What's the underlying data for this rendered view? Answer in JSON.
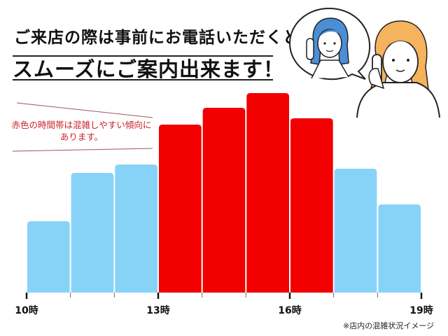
{
  "heading": {
    "line1": "ご来店の際は事前にお電話いただくと",
    "line2": "スムーズにご案内出来ます！"
  },
  "annotation": "赤色の時間帯は混雑しやすい傾向にあります。",
  "footnote": "※店内の混雑状況イメージ",
  "chart_data": {
    "type": "bar",
    "title": "",
    "xlabel": "",
    "ylabel": "",
    "x_ticks": [
      "10時",
      "13時",
      "16時",
      "19時"
    ],
    "bin_edges_hour": [
      10,
      11,
      12,
      13,
      14,
      15,
      16,
      17,
      18,
      19
    ],
    "values": [
      34,
      57,
      61,
      80,
      88,
      95,
      83,
      59,
      42
    ],
    "busy": [
      false,
      false,
      false,
      true,
      true,
      true,
      true,
      false,
      false
    ],
    "ylim": [
      0,
      100
    ],
    "grid": false,
    "colors": {
      "normal": "#87d3f8",
      "busy": "#f20000"
    }
  },
  "illustration": {
    "icons": [
      "operator-woman-on-phone-icon",
      "customer-woman-on-phone-icon"
    ],
    "colors": {
      "operator_hair": "#4a8fd6",
      "customer_hair": "#f5b35e"
    }
  }
}
